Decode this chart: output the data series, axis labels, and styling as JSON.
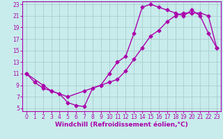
{
  "xlabel": "Windchill (Refroidissement éolien,°C)",
  "bg_color": "#c8ecec",
  "line_color": "#aa00aa",
  "grid_color": "#aacccc",
  "xlim": [
    -0.5,
    23.5
  ],
  "ylim": [
    4.5,
    23.5
  ],
  "xticks": [
    0,
    1,
    2,
    3,
    4,
    5,
    6,
    7,
    8,
    9,
    10,
    11,
    12,
    13,
    14,
    15,
    16,
    17,
    18,
    19,
    20,
    21,
    22,
    23
  ],
  "yticks": [
    5,
    7,
    9,
    11,
    13,
    15,
    17,
    19,
    21,
    23
  ],
  "line1_x": [
    0,
    1,
    2,
    3,
    4,
    5,
    6,
    7,
    8,
    9,
    10,
    11,
    12,
    13,
    14,
    15,
    16,
    17,
    18,
    19,
    20,
    21,
    22,
    23
  ],
  "line1_y": [
    11,
    9.5,
    8.5,
    8,
    7.5,
    6,
    5.5,
    5.3,
    8.5,
    9,
    11,
    13,
    14,
    18,
    22.5,
    23,
    22.5,
    22,
    21.5,
    21,
    22,
    21,
    18,
    15.5
  ],
  "line2_x": [
    0,
    2,
    3,
    5,
    7,
    9,
    10,
    11,
    12,
    13,
    14,
    15,
    16,
    17,
    18,
    19,
    20,
    21,
    22,
    23
  ],
  "line2_y": [
    11,
    9,
    8,
    7,
    8,
    9,
    9.5,
    10,
    11.5,
    13.5,
    15.5,
    17.5,
    18.5,
    20,
    21,
    21.5,
    21.5,
    21.5,
    21,
    15.5
  ],
  "marker": "D",
  "markersize": 2.5,
  "linewidth": 1.0,
  "xlabel_fontsize": 6.5,
  "tick_fontsize": 5.5
}
